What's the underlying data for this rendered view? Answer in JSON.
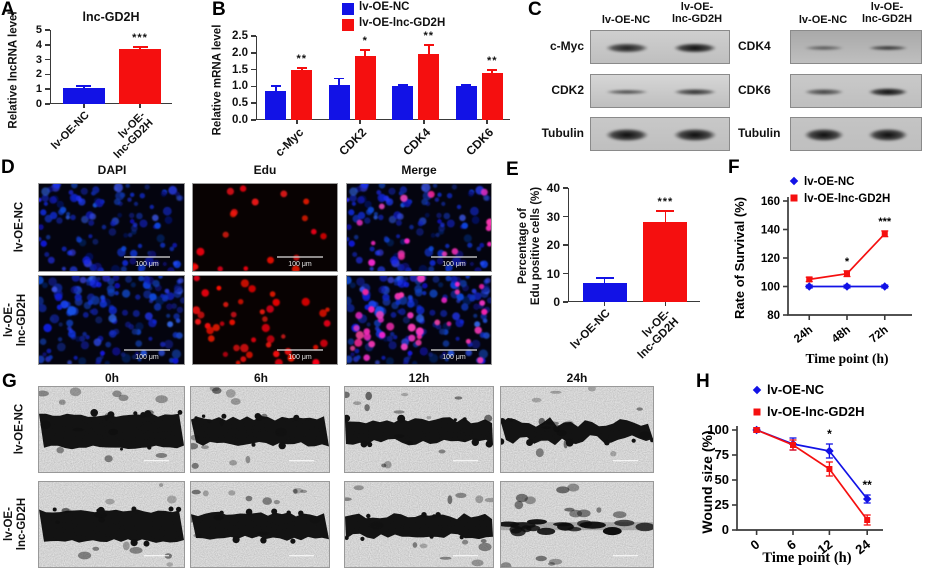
{
  "colors": {
    "blue": "#1212e6",
    "red": "#f50f0f",
    "axis": "#3a3a3a"
  },
  "panels": {
    "A": {
      "letter": "A"
    },
    "B": {
      "letter": "B"
    },
    "C": {
      "letter": "C",
      "left": {
        "headers": [
          "lv-OE-NC",
          "lv-OE-\nlnc-GD2H"
        ],
        "rows": [
          {
            "label": "c-Myc",
            "bands": [
              0.8,
              1.0
            ]
          },
          {
            "label": "CDK2",
            "bands": [
              0.35,
              0.6
            ]
          },
          {
            "label": "Tubulin",
            "bands": [
              1.0,
              1.0
            ]
          }
        ]
      },
      "right": {
        "headers": [
          "lv-OE-NC",
          "lv-OE-\nlnc-GD2H"
        ],
        "rows": [
          {
            "label": "CDK4",
            "bands": [
              0.1,
              0.55
            ]
          },
          {
            "label": "CDK6",
            "bands": [
              0.4,
              1.0
            ]
          },
          {
            "label": "Tubulin",
            "bands": [
              1.0,
              1.0
            ]
          }
        ]
      }
    },
    "D": {
      "letter": "D",
      "col_headers": [
        "DAPI",
        "Edu",
        "Merge"
      ],
      "row_labels": [
        "lv-OE-NC",
        "lv-OE-\nlnc-GD2H"
      ],
      "scale_bar_label": "100 μm"
    },
    "E": {
      "letter": "E"
    },
    "F": {
      "letter": "F"
    },
    "G": {
      "letter": "G",
      "col_headers": [
        "0h",
        "6h",
        "12h",
        "24h"
      ],
      "row_labels": [
        "lv-OE-NC",
        "lv-OE-\nlnc-GD2H"
      ]
    },
    "H": {
      "letter": "H"
    }
  },
  "chart_data": [
    {
      "id": "A",
      "type": "bar",
      "title": "lnc-GD2H",
      "ylabel": "Relative lncRNA level",
      "categories": [
        "lv-OE-NC",
        "lv-OE-\nlnc-GD2H"
      ],
      "values": [
        1.1,
        3.7
      ],
      "errors": [
        0.1,
        0.12
      ],
      "sig": [
        "",
        "***"
      ],
      "bar_colors": [
        "blue",
        "red"
      ],
      "ylim": [
        0,
        5
      ],
      "ytick_step": 1
    },
    {
      "id": "B",
      "type": "grouped_bar",
      "ylabel": "Relative mRNA level",
      "categories": [
        "c-Myc",
        "CDK2",
        "CDK4",
        "CDK6"
      ],
      "legend": [
        "lv-OE-NC",
        "lv-OE-lnc-GD2H"
      ],
      "series": [
        {
          "name": "lv-OE-NC",
          "color": "blue",
          "values": [
            0.85,
            1.05,
            1.0,
            1.0
          ],
          "errors": [
            0.15,
            0.18,
            0.05,
            0.04
          ]
        },
        {
          "name": "lv-OE-lnc-GD2H",
          "color": "red",
          "values": [
            1.5,
            1.9,
            1.95,
            1.4
          ],
          "errors": [
            0.04,
            0.18,
            0.28,
            0.08
          ],
          "sig": [
            "**",
            "*",
            "**",
            "**"
          ]
        }
      ],
      "ylim": [
        0,
        2.5
      ],
      "ytick_step": 0.5
    },
    {
      "id": "E",
      "type": "bar",
      "ylabel": "Percentage of\nEdu positive cells (%)",
      "categories": [
        "lv-OE-NC",
        "lv-OE-\nlnc-GD2H"
      ],
      "values": [
        6.5,
        28
      ],
      "errors": [
        2,
        4
      ],
      "sig": [
        "",
        "***"
      ],
      "bar_colors": [
        "blue",
        "red"
      ],
      "ylim": [
        0,
        40
      ],
      "ytick_step": 10
    },
    {
      "id": "F",
      "type": "line",
      "ylabel": "Rate of Survival (%)",
      "xlabel": "Time point (h)",
      "x": [
        "24h",
        "48h",
        "72h"
      ],
      "series": [
        {
          "name": "lv-OE-NC",
          "color": "blue",
          "values": [
            100,
            100,
            100
          ],
          "errors": [
            1,
            1,
            1
          ]
        },
        {
          "name": "lv-OE-lnc-GD2H",
          "color": "red",
          "values": [
            105,
            109,
            137
          ],
          "errors": [
            1.5,
            2,
            2
          ],
          "sig": [
            "",
            "*",
            "***"
          ]
        }
      ],
      "ylim": [
        80,
        160
      ],
      "ytick_step": 20,
      "legend_pos": "top"
    },
    {
      "id": "H",
      "type": "line",
      "ylabel": "Wound size (%)",
      "xlabel": "Time point (h)",
      "x": [
        "0",
        "6",
        "12",
        "24"
      ],
      "series": [
        {
          "name": "lv-OE-NC",
          "color": "blue",
          "values": [
            100,
            86,
            79,
            31
          ],
          "errors": [
            2,
            6,
            7,
            4
          ],
          "sig": [
            "",
            "",
            "*",
            "**"
          ]
        },
        {
          "name": "lv-OE-lnc-GD2H",
          "color": "red",
          "values": [
            100,
            85,
            61,
            10
          ],
          "errors": [
            2,
            5,
            7,
            5
          ]
        }
      ],
      "ylim": [
        0,
        100
      ],
      "ytick_step": 25,
      "legend_pos": "top"
    }
  ]
}
